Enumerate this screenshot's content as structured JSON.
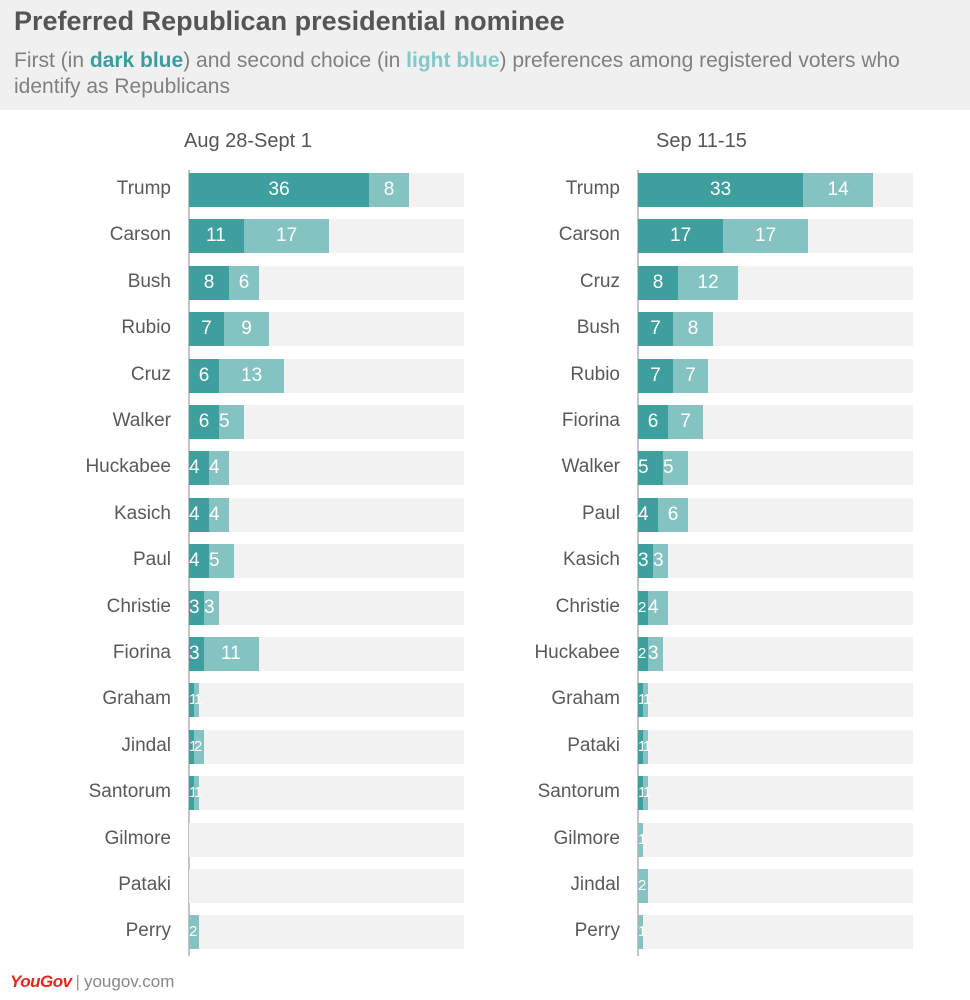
{
  "header": {
    "title": "Preferred Republican presidential nominee",
    "subtitle_part1": "First (in ",
    "subtitle_dark": "dark blue",
    "subtitle_part2": ") and second choice (in ",
    "subtitle_light": "light blue",
    "subtitle_part3": ") preferences among registered voters who identify as Republicans"
  },
  "colors": {
    "first_choice": "#3f9f9f",
    "second_choice": "#85c3c3",
    "track": "#f2f2f2",
    "brand": "#e5261a"
  },
  "footer": {
    "logo": "YouGov",
    "separator": "|",
    "site": "yougov.com"
  },
  "chart_data": [
    {
      "type": "bar",
      "orientation": "horizontal",
      "stacked": true,
      "title": "Aug 28-Sept 1",
      "xlim": [
        0,
        45
      ],
      "categories": [
        "Trump",
        "Carson",
        "Bush",
        "Rubio",
        "Cruz",
        "Walker",
        "Huckabee",
        "Kasich",
        "Paul",
        "Christie",
        "Fiorina",
        "Graham",
        "Jindal",
        "Santorum",
        "Gilmore",
        "Pataki",
        "Perry"
      ],
      "series": [
        {
          "values": [
            36,
            11,
            8,
            7,
            6,
            6,
            4,
            4,
            4,
            3,
            3,
            1,
            1,
            1,
            0,
            0,
            0
          ]
        },
        {
          "values": [
            8,
            17,
            6,
            9,
            13,
            5,
            4,
            4,
            5,
            3,
            11,
            1,
            2,
            1,
            0,
            0,
            2
          ]
        }
      ]
    },
    {
      "type": "bar",
      "orientation": "horizontal",
      "stacked": true,
      "title": "Sep 11-15",
      "xlim": [
        0,
        45
      ],
      "categories": [
        "Trump",
        "Carson",
        "Cruz",
        "Bush",
        "Rubio",
        "Fiorina",
        "Walker",
        "Paul",
        "Kasich",
        "Christie",
        "Huckabee",
        "Graham",
        "Pataki",
        "Santorum",
        "Gilmore",
        "Jindal",
        "Perry"
      ],
      "series": [
        {
          "values": [
            33,
            17,
            8,
            7,
            7,
            6,
            5,
            4,
            3,
            2,
            2,
            1,
            1,
            1,
            0,
            0,
            0
          ]
        },
        {
          "values": [
            14,
            17,
            12,
            8,
            7,
            7,
            5,
            6,
            3,
            4,
            3,
            1,
            1,
            1,
            1,
            2,
            1
          ]
        }
      ]
    }
  ]
}
